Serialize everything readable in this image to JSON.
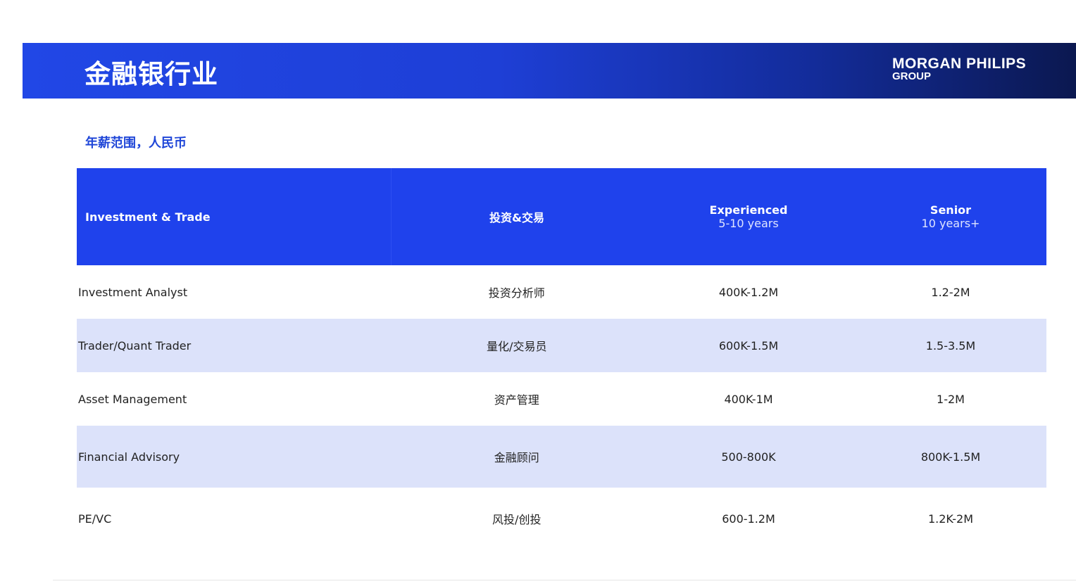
{
  "header": {
    "title": "金融银行业",
    "logo_line1": "MORGAN PHILIPS",
    "logo_line2": "GROUP"
  },
  "subtitle": "年薪范围，人民币",
  "table": {
    "columns": [
      {
        "label": "Investment & Trade",
        "sub": ""
      },
      {
        "label": "投资&交易",
        "sub": ""
      },
      {
        "label": "Experienced",
        "sub": "5-10 years"
      },
      {
        "label": "Senior",
        "sub": "10 years+"
      }
    ],
    "rows": [
      [
        "Investment Analyst",
        "投资分析师",
        "400K-1.2M",
        "1.2-2M"
      ],
      [
        "Trader/Quant Trader",
        "量化/交易员",
        "600K-1.5M",
        "1.5-3.5M"
      ],
      [
        "Asset Management",
        "资产管理",
        "400K-1M",
        "1-2M"
      ],
      [
        "Financial Advisory",
        "金融顾问",
        "500-800K",
        "800K-1.5M"
      ],
      [
        "PE/VC",
        "风投/创投",
        "600-1.2M",
        "1.2K-2M"
      ]
    ]
  }
}
